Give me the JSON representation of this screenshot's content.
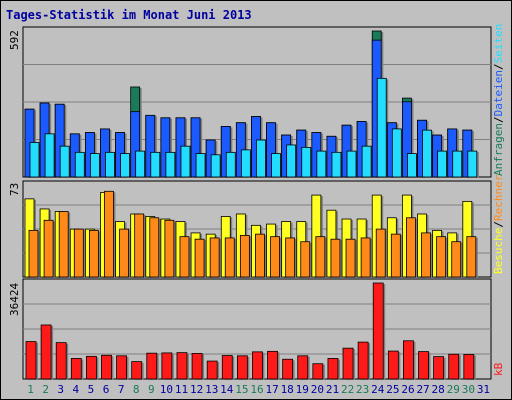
{
  "title": "Tages-Statistik im Monat Juni 2013",
  "colors": {
    "background": "#c0c0c0",
    "panel": "#c0c0c0",
    "grid": "#808080",
    "anfragen": "#1a7a5a",
    "dateien": "#1a5aff",
    "seiten": "#22ddff",
    "besuche": "#ffff22",
    "rechner": "#ff8a1a",
    "kb": "#ff1a1a",
    "title": "#0000a0",
    "weekend_day": "#1a7a5a",
    "weekday": "#0000a0",
    "slash": "#000000"
  },
  "right_labels": {
    "panel1": [
      {
        "text": "Anfragen",
        "color": "#1a7a5a"
      },
      {
        "text": "/",
        "color": "#000000"
      },
      {
        "text": "Dateien",
        "color": "#1a5aff"
      },
      {
        "text": "/",
        "color": "#000000"
      },
      {
        "text": "Seiten",
        "color": "#22ddff"
      }
    ],
    "panel2": [
      {
        "text": "Besuche",
        "color": "#ffff22"
      },
      {
        "text": "/",
        "color": "#000000"
      },
      {
        "text": "Rechner",
        "color": "#ff8a1a"
      }
    ],
    "panel3": [
      {
        "text": "kB",
        "color": "#ff1a1a"
      }
    ]
  },
  "chart_data": {
    "type": "bar",
    "categories": [
      "1",
      "2",
      "3",
      "4",
      "5",
      "6",
      "7",
      "8",
      "9",
      "10",
      "11",
      "12",
      "13",
      "14",
      "15",
      "16",
      "17",
      "18",
      "19",
      "20",
      "21",
      "22",
      "23",
      "24",
      "25",
      "26",
      "27",
      "28",
      "29",
      "30",
      "31"
    ],
    "green_days": [
      "1",
      "2",
      "8",
      "9",
      "15",
      "16",
      "22",
      "23",
      "29",
      "30"
    ],
    "panels": [
      {
        "ymax_label": "592",
        "ymax": 592,
        "series": [
          {
            "name": "Anfragen",
            "values": [
              275,
              300,
              295,
              175,
              180,
              195,
              180,
              365,
              250,
              240,
              240,
              240,
              150,
              205,
              220,
              245,
              220,
              170,
              190,
              180,
              165,
              210,
              225,
              592,
              220,
              320,
              230,
              170,
              195,
              190,
              0
            ]
          },
          {
            "name": "Dateien",
            "values": [
              275,
              300,
              295,
              175,
              180,
              195,
              180,
              265,
              250,
              240,
              240,
              240,
              150,
              205,
              220,
              245,
              220,
              170,
              190,
              180,
              165,
              210,
              225,
              555,
              220,
              305,
              230,
              170,
              195,
              190,
              0
            ]
          },
          {
            "name": "Seiten",
            "values": [
              140,
              175,
              125,
              100,
              95,
              100,
              95,
              105,
              100,
              100,
              125,
              95,
              90,
              100,
              110,
              150,
              95,
              130,
              120,
              105,
              100,
              105,
              125,
              400,
              195,
              95,
              190,
              105,
              105,
              105,
              0
            ]
          }
        ]
      },
      {
        "ymax_label": "73",
        "ymax": 73,
        "series": [
          {
            "name": "Besuche",
            "values": [
              62,
              54,
              52,
              38,
              38,
              67,
              44,
              50,
              48,
              46,
              44,
              35,
              34,
              48,
              50,
              41,
              42,
              44,
              44,
              65,
              53,
              46,
              46,
              65,
              47,
              65,
              50,
              37,
              35,
              60,
              0
            ]
          },
          {
            "name": "Rechner",
            "values": [
              37,
              45,
              52,
              38,
              37,
              68,
              38,
              50,
              47,
              45,
              32,
              30,
              31,
              31,
              33,
              34,
              32,
              31,
              28,
              32,
              30,
              30,
              31,
              38,
              34,
              47,
              35,
              32,
              28,
              32,
              0
            ]
          }
        ]
      },
      {
        "ymax_label": "36424",
        "ymax": 36424,
        "series": [
          {
            "name": "kB",
            "values": [
              14200,
              20500,
              13800,
              7800,
              8600,
              9000,
              8800,
              6600,
              9800,
              9900,
              10000,
              9700,
              6800,
              8900,
              8800,
              10300,
              10500,
              7500,
              8800,
              5800,
              7800,
              11700,
              14000,
              36424,
              10600,
              14500,
              10400,
              8500,
              9400,
              9300,
              0
            ]
          }
        ]
      }
    ]
  }
}
